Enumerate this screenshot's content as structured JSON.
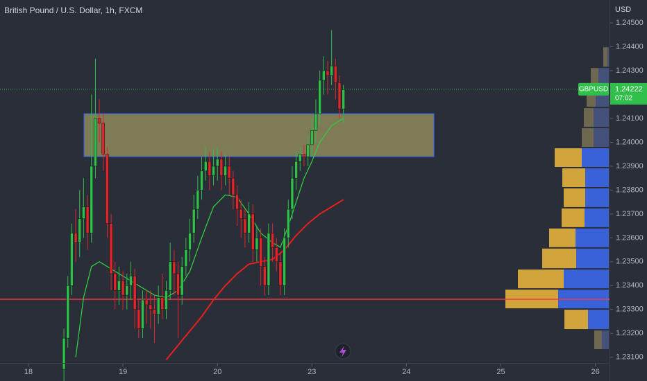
{
  "chart_data": {
    "type": "candlestick",
    "title": "British Pound / U.S. Dollar, 1h, FXCM",
    "currency": "USD",
    "symbol": "GBPUSD",
    "last_price": 1.24222,
    "countdown": "07:02",
    "up_color": "#2fbf4a",
    "down_color": "#e0262b",
    "x": [
      9,
      10,
      11,
      12,
      13,
      14,
      15,
      16,
      17,
      18,
      19,
      20,
      21,
      22,
      23,
      24,
      25,
      26,
      27,
      28,
      29,
      30,
      31,
      32,
      33,
      34,
      35,
      36,
      37,
      38,
      39,
      40,
      41,
      42,
      43,
      44,
      45,
      46,
      47,
      48,
      49,
      50,
      51,
      52,
      53,
      54,
      55,
      56,
      57,
      58,
      59,
      60,
      61,
      62,
      63,
      64,
      65,
      66,
      67,
      68,
      69,
      70,
      71,
      72,
      73,
      74,
      75,
      76,
      77,
      78,
      79,
      80
    ],
    "open": [
      1.2305,
      1.2318,
      1.234,
      1.2362,
      1.2358,
      1.2368,
      1.2373,
      1.2362,
      1.239,
      1.241,
      1.2408,
      1.2395,
      1.2366,
      1.2345,
      1.2338,
      1.2342,
      1.2336,
      1.234,
      1.2344,
      1.233,
      1.2322,
      1.2334,
      1.2332,
      1.233,
      1.2328,
      1.2335,
      1.233,
      1.2338,
      1.235,
      1.2345,
      1.2336,
      1.2348,
      1.2355,
      1.2362,
      1.2372,
      1.238,
      1.2388,
      1.2392,
      1.2386,
      1.239,
      1.2393,
      1.2386,
      1.239,
      1.2385,
      1.2378,
      1.2372,
      1.2368,
      1.2362,
      1.237,
      1.2355,
      1.236,
      1.2348,
      1.234,
      1.2362,
      1.2356,
      1.235,
      1.234,
      1.236,
      1.2372,
      1.2385,
      1.2392,
      1.2395,
      1.2394,
      1.2399,
      1.2405,
      1.2412,
      1.2426,
      1.243,
      1.2428,
      1.2432,
      1.2425,
      1.2414
    ],
    "high": [
      1.2322,
      1.2344,
      1.2366,
      1.2372,
      1.238,
      1.2385,
      1.2378,
      1.242,
      1.2435,
      1.2418,
      1.2412,
      1.2398,
      1.237,
      1.235,
      1.2348,
      1.2346,
      1.2345,
      1.235,
      1.2347,
      1.2334,
      1.2338,
      1.2338,
      1.2338,
      1.2336,
      1.234,
      1.2345,
      1.2342,
      1.2358,
      1.2355,
      1.235,
      1.2352,
      1.236,
      1.2368,
      1.2378,
      1.2386,
      1.2394,
      1.2398,
      1.2396,
      1.2397,
      1.2398,
      1.2396,
      1.2395,
      1.2394,
      1.2388,
      1.2382,
      1.2376,
      1.2372,
      1.2375,
      1.2374,
      1.2365,
      1.2364,
      1.2352,
      1.2366,
      1.2366,
      1.236,
      1.2354,
      1.2364,
      1.2376,
      1.239,
      1.2396,
      1.2398,
      1.2399,
      1.2402,
      1.241,
      1.2418,
      1.243,
      1.2436,
      1.2434,
      1.2447,
      1.2435,
      1.2428,
      1.2424
    ],
    "low": [
      1.23,
      1.2314,
      1.2336,
      1.235,
      1.2352,
      1.236,
      1.2355,
      1.2358,
      1.2385,
      1.24,
      1.2388,
      1.236,
      1.2338,
      1.233,
      1.2332,
      1.233,
      1.233,
      1.2334,
      1.2322,
      1.2318,
      1.2318,
      1.2324,
      1.2322,
      1.2316,
      1.2324,
      1.2326,
      1.2326,
      1.2334,
      1.2336,
      1.2318,
      1.2332,
      1.2344,
      1.235,
      1.2358,
      1.2368,
      1.2376,
      1.2384,
      1.238,
      1.2382,
      1.2384,
      1.238,
      1.2382,
      1.2378,
      1.2372,
      1.2365,
      1.236,
      1.2356,
      1.2358,
      1.235,
      1.235,
      1.234,
      1.2336,
      1.2336,
      1.235,
      1.2346,
      1.2336,
      1.2336,
      1.2356,
      1.2368,
      1.238,
      1.2388,
      1.239,
      1.239,
      1.2394,
      1.24,
      1.2408,
      1.242,
      1.242,
      1.2424,
      1.2418,
      1.241,
      1.2408
    ],
    "close": [
      1.2318,
      1.234,
      1.2362,
      1.2358,
      1.2368,
      1.2373,
      1.2362,
      1.239,
      1.241,
      1.2408,
      1.2395,
      1.2366,
      1.2345,
      1.2338,
      1.2342,
      1.2336,
      1.234,
      1.2344,
      1.233,
      1.2322,
      1.2334,
      1.2332,
      1.233,
      1.2328,
      1.2335,
      1.233,
      1.2338,
      1.235,
      1.2345,
      1.2336,
      1.2348,
      1.2355,
      1.2362,
      1.2372,
      1.238,
      1.2388,
      1.2392,
      1.2386,
      1.239,
      1.2393,
      1.2386,
      1.239,
      1.2385,
      1.2378,
      1.2372,
      1.2368,
      1.2362,
      1.237,
      1.2355,
      1.236,
      1.2348,
      1.234,
      1.2362,
      1.2356,
      1.235,
      1.234,
      1.236,
      1.2372,
      1.2385,
      1.2392,
      1.2395,
      1.2394,
      1.2399,
      1.2405,
      1.2412,
      1.2426,
      1.243,
      1.2428,
      1.2432,
      1.2425,
      1.2414,
      1.2422
    ],
    "moving_averages": [
      {
        "color": "#2ecc40",
        "x": [
          12,
          14,
          16,
          18,
          20,
          24,
          28,
          32,
          35,
          38,
          41,
          44,
          47,
          50,
          53,
          56,
          59,
          62,
          64,
          66,
          68,
          70,
          72,
          74,
          77,
          80
        ],
        "values": [
          1.231,
          1.2335,
          1.2348,
          1.235,
          1.2348,
          1.2344,
          1.234,
          1.2336,
          1.2335,
          1.2338,
          1.2346,
          1.236,
          1.2373,
          1.2378,
          1.2377,
          1.237,
          1.2362,
          1.2358,
          1.2356,
          1.2365,
          1.2375,
          1.2385,
          1.2392,
          1.24,
          1.2407,
          1.241
        ]
      },
      {
        "color": "#e8201c",
        "x": [
          35,
          38,
          41,
          44,
          47,
          50,
          53,
          56,
          59,
          62,
          65,
          68,
          71,
          74,
          77,
          80
        ],
        "values": [
          1.2309,
          1.2315,
          1.2321,
          1.2327,
          1.2334,
          1.234,
          1.2345,
          1.2349,
          1.235,
          1.2351,
          1.2355,
          1.2361,
          1.2366,
          1.237,
          1.2373,
          1.2376
        ]
      }
    ],
    "zone": {
      "x": [
        14.1,
        103
      ],
      "y": [
        1.2394,
        1.2412
      ],
      "color": "#9c9660",
      "border_color": "#2962ff"
    },
    "hline": {
      "value": 1.23343,
      "color": "#f23645"
    },
    "volume_profile": {
      "bins": [
        1.24401,
        1.24314,
        1.2423,
        1.24146,
        1.24062,
        1.23978,
        1.23894,
        1.2381,
        1.23726,
        1.23642,
        1.23558,
        1.2347,
        1.23386,
        1.23302,
        1.23215,
        1.23131
      ],
      "sell": [
        6,
        11,
        13,
        14,
        17,
        39,
        33,
        31,
        33,
        38,
        49,
        66,
        76,
        34,
        11
      ],
      "buy": [
        2,
        15,
        19,
        22,
        22,
        39,
        34,
        34,
        35,
        48,
        47,
        65,
        73,
        30,
        10
      ],
      "value_area": [
        1.23215,
        1.23978
      ],
      "sell_color": "#d2a53c",
      "buy_color": "#3a62d8",
      "faded_sell_color": "#6f6850",
      "faded_buy_color": "#44517a"
    },
    "xlim": [
      -7.235,
      147.6
    ],
    "ylim": [
      1.23076,
      1.24596
    ],
    "xticks": [
      {
        "value": 0,
        "label": "18"
      },
      {
        "value": 24,
        "label": "19"
      },
      {
        "value": 48,
        "label": "20"
      },
      {
        "value": 72,
        "label": "23"
      },
      {
        "value": 96,
        "label": "24"
      },
      {
        "value": 120,
        "label": "25"
      },
      {
        "value": 144,
        "label": "26"
      }
    ],
    "yticks": [
      {
        "value": 1.245,
        "label": "1.24500"
      },
      {
        "value": 1.244,
        "label": "1.24400"
      },
      {
        "value": 1.243,
        "label": "1.24300"
      },
      {
        "value": 1.241,
        "label": "1.24100"
      },
      {
        "value": 1.24,
        "label": "1.24000"
      },
      {
        "value": 1.239,
        "label": "1.23900"
      },
      {
        "value": 1.238,
        "label": "1.23800"
      },
      {
        "value": 1.237,
        "label": "1.23700"
      },
      {
        "value": 1.236,
        "label": "1.23600"
      },
      {
        "value": 1.235,
        "label": "1.23500"
      },
      {
        "value": 1.234,
        "label": "1.23400"
      },
      {
        "value": 1.233,
        "label": "1.23300"
      },
      {
        "value": 1.232,
        "label": "1.23200"
      },
      {
        "value": 1.231,
        "label": "1.23100"
      }
    ]
  }
}
